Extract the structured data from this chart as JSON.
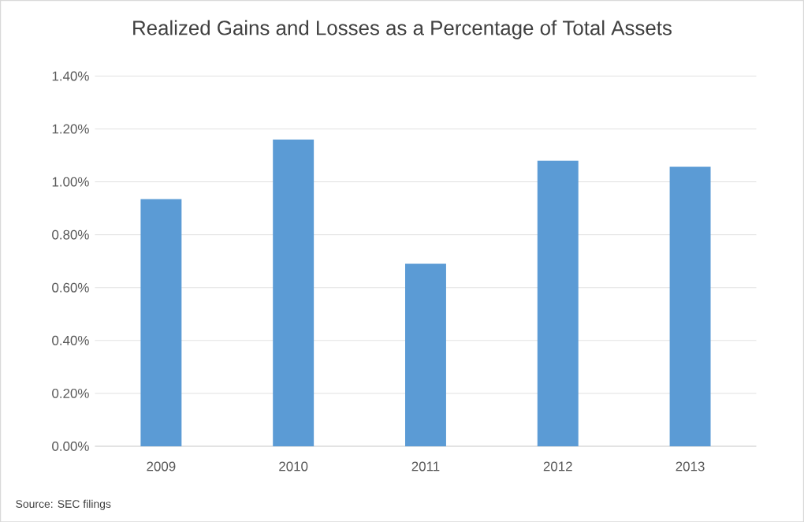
{
  "chart_data": {
    "type": "bar",
    "title": "Realized Gains and Losses as a Percentage of Total Assets",
    "categories": [
      "2009",
      "2010",
      "2011",
      "2012",
      "2013"
    ],
    "values": [
      0.935,
      1.16,
      0.69,
      1.08,
      1.057
    ],
    "color": "#5b9bd5",
    "ylim": [
      0,
      1.4
    ],
    "yticks": [
      {
        "value": 0,
        "label": "0.00%"
      },
      {
        "value": 0.2,
        "label": "0.20%"
      },
      {
        "value": 0.4,
        "label": "0.40%"
      },
      {
        "value": 0.6,
        "label": "0.60%"
      },
      {
        "value": 0.8,
        "label": "0.80%"
      },
      {
        "value": 1.0,
        "label": "1.00%"
      },
      {
        "value": 1.2,
        "label": "1.20%"
      },
      {
        "value": 1.4,
        "label": "1.40%"
      }
    ],
    "grid": "y",
    "annotations": [
      "Source: SEC filings"
    ]
  }
}
